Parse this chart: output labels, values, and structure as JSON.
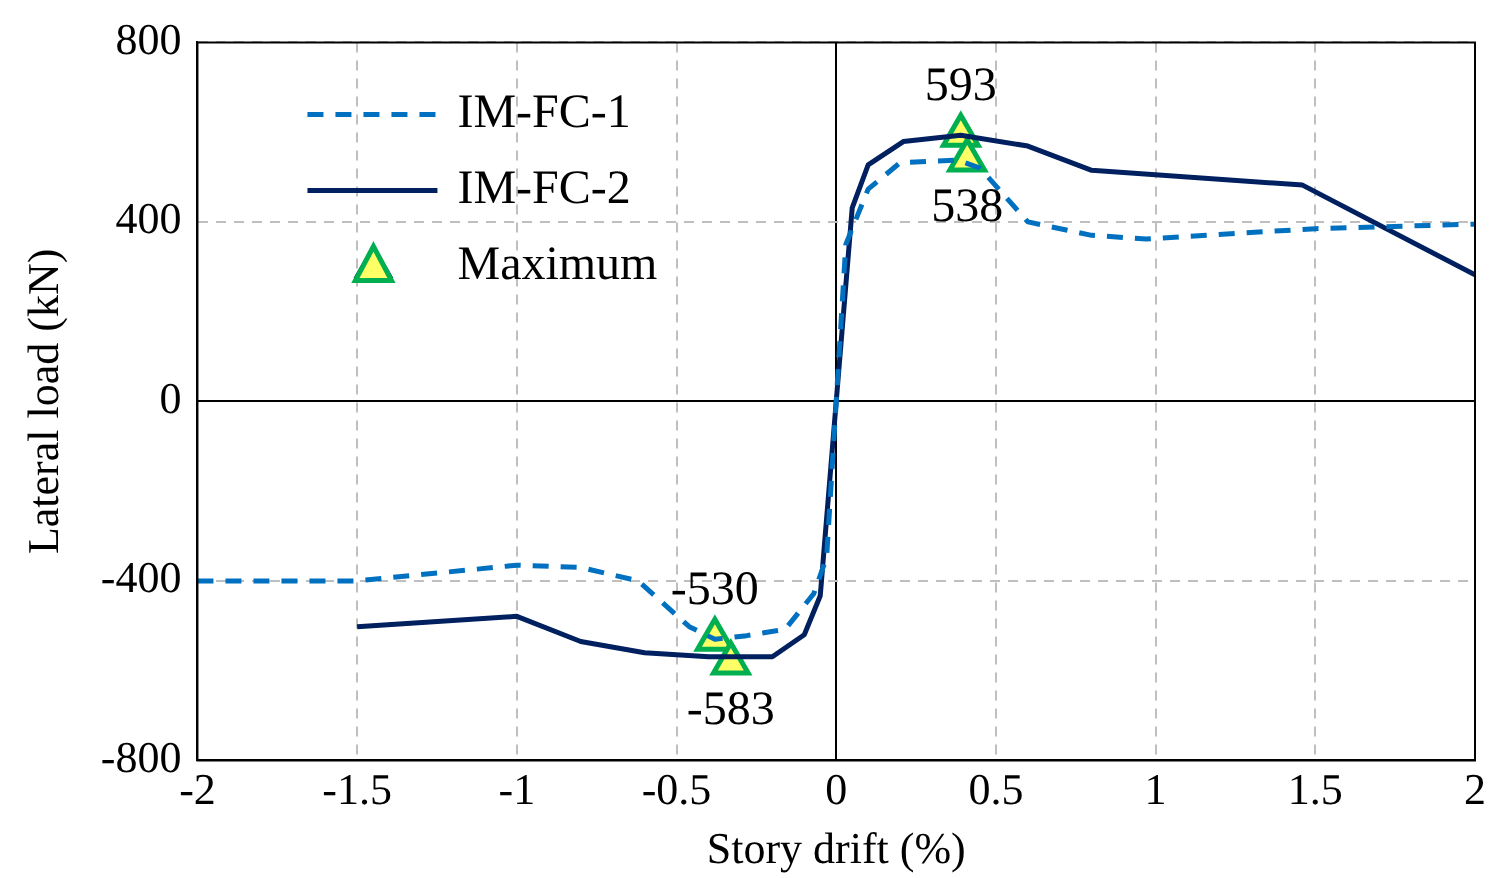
{
  "chart_data": {
    "type": "line",
    "xlabel": "Story drift (%)",
    "ylabel": "Lateral load (kN)",
    "xlim": [
      -2,
      2
    ],
    "xticks": [
      -2,
      -1.5,
      -1,
      -0.5,
      0,
      0.5,
      1,
      1.5,
      2
    ],
    "ylim": [
      -800,
      800
    ],
    "yticks": [
      -800,
      -400,
      0,
      400,
      800
    ],
    "grid": true,
    "legend": "top left",
    "series": [
      {
        "name": "IM-FC-1",
        "color": "#0070c0",
        "line_style": "dashed",
        "marker": "none",
        "x": [
          -2,
          -1.5,
          -1,
          -0.8,
          -0.62,
          -0.46,
          -0.38,
          -0.28,
          -0.16,
          -0.07,
          -0.03,
          0,
          0.03,
          0.1,
          0.2,
          0.38,
          0.45,
          0.6,
          0.8,
          0.97,
          1.5,
          2
        ],
        "values": [
          -400,
          -400,
          -365,
          -370,
          -400,
          -502,
          -530,
          -522,
          -508,
          -428,
          -347,
          0,
          350,
          473,
          532,
          538,
          520,
          400,
          370,
          362,
          385,
          395
        ]
      },
      {
        "name": "IM-FC-2",
        "color": "#002060",
        "line_style": "solid",
        "marker": "none",
        "x": [
          -1.5,
          -1,
          -0.8,
          -0.6,
          -0.4,
          -0.2,
          -0.1,
          -0.05,
          0,
          0.05,
          0.1,
          0.21,
          0.39,
          0.6,
          0.8,
          1.46,
          2
        ],
        "values": [
          -502,
          -479,
          -535,
          -560,
          -569,
          -569,
          -520,
          -433,
          0,
          431,
          527,
          579,
          593,
          569,
          515,
          482,
          282
        ]
      },
      {
        "name": "Maximum",
        "type": "scatter",
        "color": "#ffff66",
        "marker": "triangle",
        "x": [
          0.39,
          0.41,
          -0.38,
          -0.33
        ],
        "values": [
          593,
          538,
          -530,
          -583
        ],
        "value_labels": [
          "593",
          "538",
          "-530",
          "-583"
        ]
      }
    ]
  }
}
